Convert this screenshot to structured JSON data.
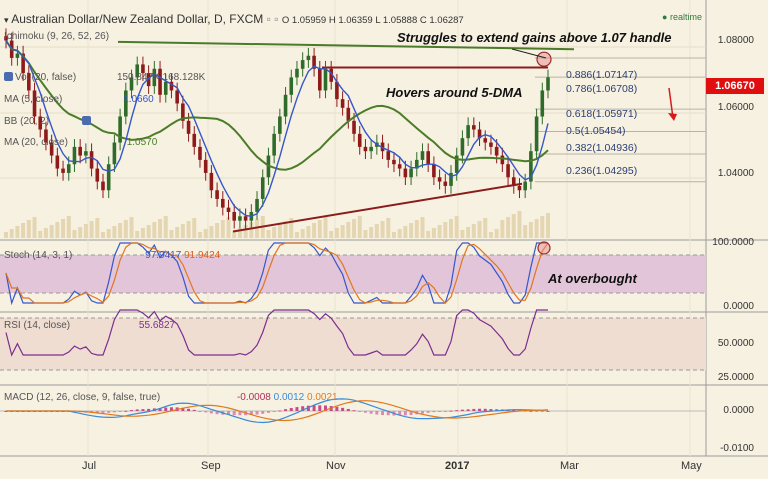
{
  "header": {
    "title": "Australian Dollar/New Zealand Dollar, D, FXCM",
    "ohlc": "O 1.05959 H 1.06359 L 1.05888 C 1.06287",
    "live_label": "realtime"
  },
  "price_badge": "1.06670",
  "annotations": {
    "top": "Struggles to extend gains above 1.07 handle",
    "mid": "Hovers around 5-DMA",
    "stoch": "At overbought"
  },
  "legend": {
    "ichimoku": "Ichimoku (9, 26, 52, 26)",
    "vol": "Vol (20, false)",
    "vol_values": "150.847K 168.128K",
    "ma5": "MA (5, close)",
    "ma5_value": "1.0660",
    "bb": "BB (20, 2)",
    "ma20": "MA (20, close)",
    "ma20_value": "1.0570"
  },
  "fib_levels": [
    "0.886(1.07147)",
    "0.786(1.06708)",
    "0.618(1.05971)",
    "0.5(1.05454)",
    "0.382(1.04936)",
    "0.236(1.04295)"
  ],
  "price_axis": [
    "1.08000",
    "1.06000",
    "1.04000"
  ],
  "stoch": {
    "label": "Stoch (14, 3, 1)",
    "value_k": "97.9417",
    "value_d": "91.9424",
    "axis": [
      "100.0000",
      "0.0000"
    ]
  },
  "rsi": {
    "label": "RSI (14, close)",
    "value": "55.6827",
    "axis": [
      "50.0000",
      "25.0000"
    ]
  },
  "macd": {
    "label": "MACD (12, 26, close, 9, false, true)",
    "values": [
      "-0.0008",
      "0.0012",
      "0.0021"
    ],
    "axis": [
      "0.0000",
      "-0.0100"
    ]
  },
  "time_axis": [
    "Jul",
    "Sep",
    "Nov",
    "2017",
    "Mar",
    "May"
  ],
  "colors": {
    "background": "#f7f1e2",
    "up_candle": "#2f6b2a",
    "down_candle": "#8e1a1a",
    "ma20": "#4b7d28",
    "ma5": "#3557c9",
    "resistance": "#4a7a2a",
    "support": "#8a1c1c",
    "stoch_band": "#e3c5d9",
    "rsi_band": "#f0ddd2",
    "badge": "#e00e0e"
  },
  "chart_data": {
    "type": "candlestick",
    "title": "Australian Dollar/New Zealand Dollar, D, FXCM",
    "x_ticks": [
      "Jul",
      "Sep",
      "Nov",
      "2017",
      "Mar",
      "May"
    ],
    "ylim": [
      1.03,
      1.083
    ],
    "closes": [
      1.0755,
      1.0715,
      1.0725,
      1.068,
      1.064,
      1.058,
      1.055,
      1.052,
      1.049,
      1.046,
      1.045,
      1.047,
      1.051,
      1.049,
      1.05,
      1.046,
      1.043,
      1.041,
      1.047,
      1.052,
      1.058,
      1.064,
      1.067,
      1.07,
      1.068,
      1.065,
      1.069,
      1.063,
      1.066,
      1.064,
      1.061,
      1.057,
      1.054,
      1.051,
      1.048,
      1.045,
      1.041,
      1.039,
      1.037,
      1.036,
      1.034,
      1.035,
      1.034,
      1.036,
      1.039,
      1.044,
      1.049,
      1.054,
      1.058,
      1.063,
      1.067,
      1.069,
      1.071,
      1.072,
      1.069,
      1.064,
      1.069,
      1.066,
      1.062,
      1.06,
      1.057,
      1.054,
      1.051,
      1.05,
      1.051,
      1.052,
      1.05,
      1.048,
      1.047,
      1.046,
      1.044,
      1.046,
      1.048,
      1.05,
      1.047,
      1.044,
      1.043,
      1.042,
      1.045,
      1.049,
      1.053,
      1.056,
      1.055,
      1.053,
      1.052,
      1.051,
      1.049,
      1.047,
      1.044,
      1.042,
      1.041,
      1.043,
      1.05,
      1.058,
      1.064,
      1.067
    ]
  }
}
